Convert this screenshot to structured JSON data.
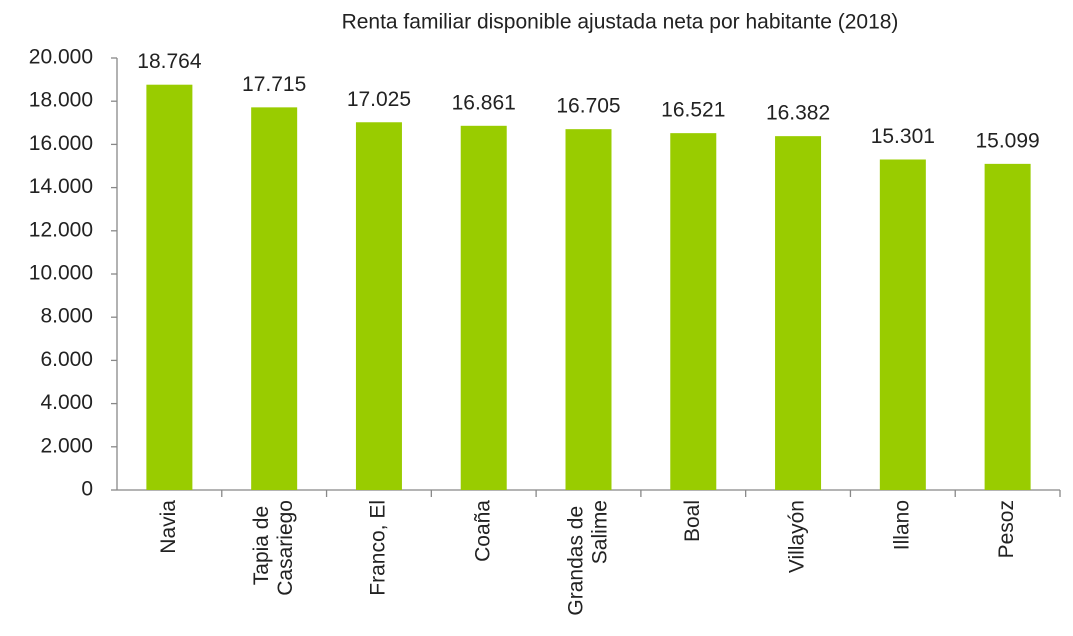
{
  "chart_data": {
    "type": "bar",
    "title": "Renta familiar disponible ajustada neta por habitante (2018)",
    "categories": [
      "Navia",
      "Tapia de Casariego",
      "Franco, El",
      "Coaña",
      "Grandas de Salime",
      "Boal",
      "Villayón",
      "Illano",
      "Pesoz"
    ],
    "values": [
      18764,
      17715,
      17025,
      16861,
      16705,
      16521,
      16382,
      15301,
      15099
    ],
    "value_labels": [
      "18.764",
      "17.715",
      "17.025",
      "16.861",
      "16.705",
      "16.521",
      "16.382",
      "15.301",
      "15.099"
    ],
    "color": "#99cc00",
    "ylim": [
      0,
      20000
    ],
    "yticks": [
      0,
      {
        "value": 2000,
        "label": "2.000"
      },
      {
        "value": 4000,
        "label": "4.000"
      },
      {
        "value": 6000,
        "label": "6.000"
      },
      {
        "value": 8000,
        "label": "8.000"
      },
      {
        "value": 10000,
        "label": "10.000"
      },
      {
        "value": 12000,
        "label": "12.000"
      },
      {
        "value": 14000,
        "label": "14.000"
      },
      {
        "value": 16000,
        "label": "16.000"
      },
      {
        "value": 18000,
        "label": "18.000"
      },
      {
        "value": 20000,
        "label": "20.000"
      }
    ],
    "grid": false
  }
}
